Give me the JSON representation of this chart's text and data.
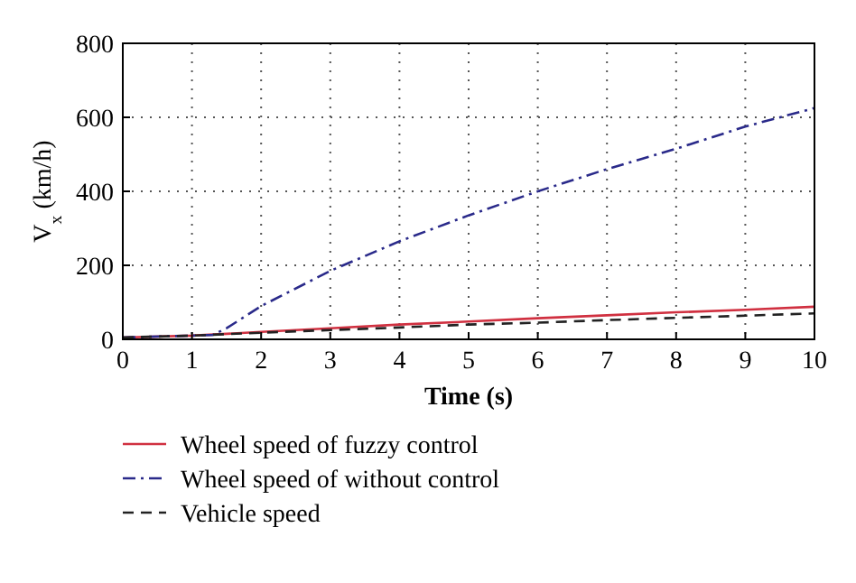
{
  "chart_data": {
    "type": "line",
    "xlabel": "Time (s)",
    "ylabel": "V$_{x}$ (km/h)",
    "xlim": [
      0,
      10
    ],
    "xticks": [
      0,
      1,
      2,
      3,
      4,
      5,
      6,
      7,
      8,
      9,
      10
    ],
    "ylim": [
      0,
      800
    ],
    "yticks": [
      0,
      200,
      400,
      600,
      800
    ],
    "grid": true,
    "legend": "bottom",
    "series": [
      {
        "name": "Wheel speed of fuzzy control",
        "color": "#d03040",
        "line_style": "solid",
        "x": [
          0,
          1,
          2,
          3,
          4,
          5,
          6,
          7,
          8,
          9,
          10
        ],
        "values": [
          5,
          10,
          20,
          30,
          40,
          48,
          57,
          65,
          73,
          80,
          88
        ]
      },
      {
        "name": "Wheel speed of without control",
        "color": "#2a2a8a",
        "line_style": "dashdot",
        "x": [
          0,
          1,
          1.3,
          1.5,
          2,
          3,
          4,
          5,
          6,
          7,
          8,
          9,
          10
        ],
        "values": [
          5,
          10,
          12,
          30,
          90,
          185,
          265,
          335,
          400,
          460,
          515,
          575,
          625
        ]
      },
      {
        "name": "Vehicle speed",
        "color": "#222222",
        "line_style": "dashed",
        "x": [
          0,
          1,
          2,
          3,
          4,
          5,
          6,
          7,
          8,
          9,
          10
        ],
        "values": [
          5,
          10,
          18,
          25,
          32,
          40,
          45,
          52,
          58,
          64,
          70
        ]
      }
    ]
  }
}
